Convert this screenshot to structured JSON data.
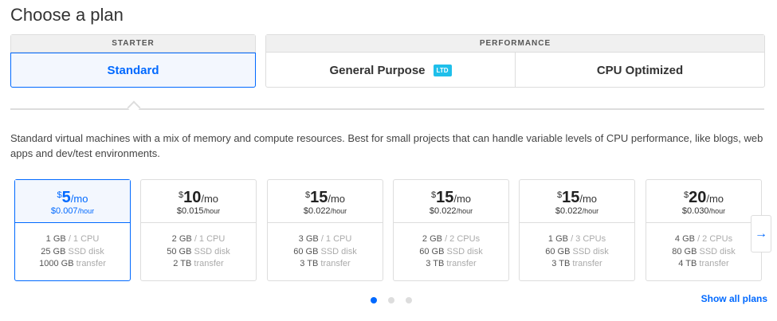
{
  "title": "Choose a plan",
  "groups": {
    "starter": "STARTER",
    "performance": "PERFORMANCE"
  },
  "tabs": {
    "standard": "Standard",
    "general": "General Purpose",
    "general_badge": "LTD",
    "cpu": "CPU Optimized"
  },
  "description": "Standard virtual machines with a mix of memory and compute resources. Best for small projects that can handle variable levels of CPU performance, like blogs, web apps and dev/test environments.",
  "plans": [
    {
      "price": "5",
      "hourly": "$0.007",
      "mem": "1 GB",
      "cpu": "/ 1 CPU",
      "disk": "25 GB",
      "transfer": "1000 GB",
      "selected": true
    },
    {
      "price": "10",
      "hourly": "$0.015",
      "mem": "2 GB",
      "cpu": "/ 1 CPU",
      "disk": "50 GB",
      "transfer": "2 TB"
    },
    {
      "price": "15",
      "hourly": "$0.022",
      "mem": "3 GB",
      "cpu": "/ 1 CPU",
      "disk": "60 GB",
      "transfer": "3 TB"
    },
    {
      "price": "15",
      "hourly": "$0.022",
      "mem": "2 GB",
      "cpu": "/ 2 CPUs",
      "disk": "60 GB",
      "transfer": "3 TB"
    },
    {
      "price": "15",
      "hourly": "$0.022",
      "mem": "1 GB",
      "cpu": "/ 3 CPUs",
      "disk": "60 GB",
      "transfer": "3 TB"
    },
    {
      "price": "20",
      "hourly": "$0.030",
      "mem": "4 GB",
      "cpu": "/ 2 CPUs",
      "disk": "80 GB",
      "transfer": "4 TB"
    }
  ],
  "labels": {
    "currency": "$",
    "per_month": "/mo",
    "per_hour": "/hour",
    "disk": "SSD disk",
    "transfer": "transfer"
  },
  "pagination": {
    "pages": 3,
    "current": 1
  },
  "next_icon": "arrow-right-icon",
  "show_all": "Show all plans",
  "colors": {
    "accent": "#0069ff",
    "badge": "#1fbfea"
  }
}
